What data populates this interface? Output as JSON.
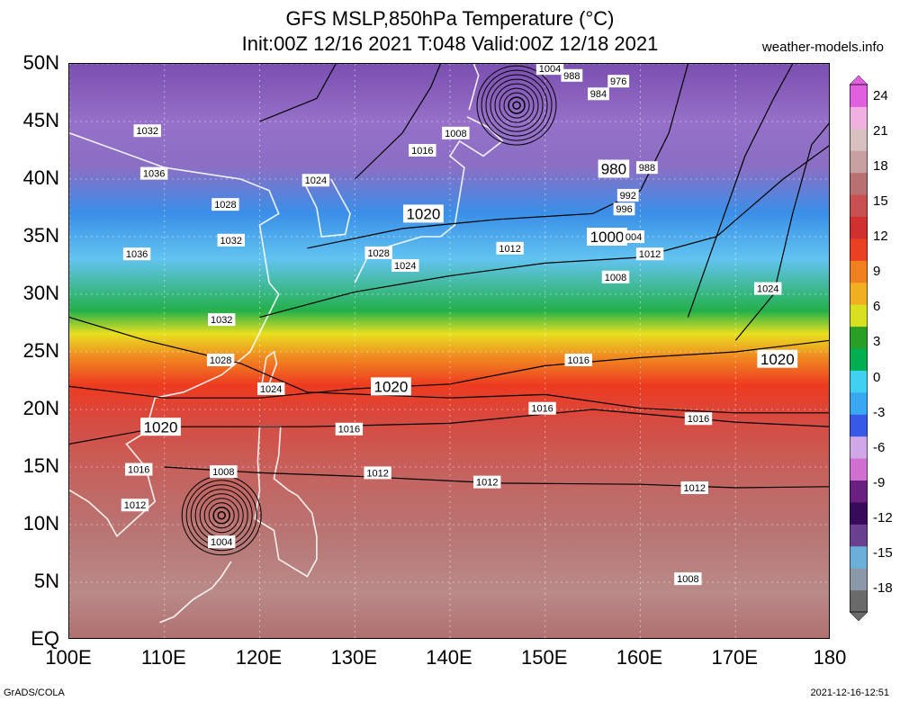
{
  "header": {
    "title_line1": "GFS MSLP,850hPa Temperature (°C)",
    "title_line2": "Init:00Z 12/16 2021 T:048 Valid:00Z 12/18 2021",
    "credit": "weather-models.info"
  },
  "map": {
    "lat_labels": [
      "50N",
      "45N",
      "40N",
      "35N",
      "30N",
      "25N",
      "20N",
      "15N",
      "10N",
      "5N",
      "EQ"
    ],
    "lat_values": [
      50,
      45,
      40,
      35,
      30,
      25,
      20,
      15,
      10,
      5,
      0
    ],
    "lon_labels": [
      "100E",
      "110E",
      "120E",
      "130E",
      "140E",
      "150E",
      "160E",
      "170E",
      "180"
    ],
    "lon_values": [
      100,
      110,
      120,
      130,
      140,
      150,
      160,
      170,
      180
    ],
    "lon_range": [
      100,
      180
    ],
    "lat_range": [
      0,
      50
    ],
    "isobar_labels": [
      {
        "text": "1004",
        "lon": 150.5,
        "lat": 49.6,
        "big": false
      },
      {
        "text": "988",
        "lon": 152.8,
        "lat": 49.0,
        "big": false
      },
      {
        "text": "984",
        "lon": 155.6,
        "lat": 47.4,
        "big": false
      },
      {
        "text": "976",
        "lon": 157.7,
        "lat": 48.5,
        "big": false
      },
      {
        "text": "1032",
        "lon": 108.2,
        "lat": 44.2,
        "big": false
      },
      {
        "text": "1008",
        "lon": 140.6,
        "lat": 44.0,
        "big": false
      },
      {
        "text": "1016",
        "lon": 137.1,
        "lat": 42.5,
        "big": false
      },
      {
        "text": "1036",
        "lon": 108.9,
        "lat": 40.5,
        "big": false
      },
      {
        "text": "980",
        "lon": 157.2,
        "lat": 40.9,
        "big": true
      },
      {
        "text": "988",
        "lon": 160.7,
        "lat": 41.0,
        "big": false
      },
      {
        "text": "1024",
        "lon": 125.9,
        "lat": 39.9,
        "big": false
      },
      {
        "text": "992",
        "lon": 158.7,
        "lat": 38.6,
        "big": false
      },
      {
        "text": "1028",
        "lon": 116.4,
        "lat": 37.8,
        "big": false
      },
      {
        "text": "996",
        "lon": 158.3,
        "lat": 37.4,
        "big": false
      },
      {
        "text": "1020",
        "lon": 137.2,
        "lat": 37.0,
        "big": true
      },
      {
        "text": "1000",
        "lon": 156.5,
        "lat": 35.0,
        "big": true
      },
      {
        "text": "004",
        "lon": 159.3,
        "lat": 35.0,
        "big": false
      },
      {
        "text": "1032",
        "lon": 117.0,
        "lat": 34.7,
        "big": false
      },
      {
        "text": "1012",
        "lon": 146.3,
        "lat": 34.0,
        "big": false
      },
      {
        "text": "1012",
        "lon": 161.0,
        "lat": 33.5,
        "big": false
      },
      {
        "text": "1036",
        "lon": 107.1,
        "lat": 33.5,
        "big": false
      },
      {
        "text": "1028",
        "lon": 132.5,
        "lat": 33.6,
        "big": false
      },
      {
        "text": "1024",
        "lon": 135.3,
        "lat": 32.5,
        "big": false
      },
      {
        "text": "1008",
        "lon": 157.4,
        "lat": 31.5,
        "big": false
      },
      {
        "text": "1024",
        "lon": 173.4,
        "lat": 30.5,
        "big": false
      },
      {
        "text": "1032",
        "lon": 116.0,
        "lat": 27.8,
        "big": false
      },
      {
        "text": "1020",
        "lon": 174.4,
        "lat": 24.4,
        "big": true
      },
      {
        "text": "1028",
        "lon": 115.9,
        "lat": 24.3,
        "big": false
      },
      {
        "text": "1016",
        "lon": 153.5,
        "lat": 24.3,
        "big": false
      },
      {
        "text": "1020",
        "lon": 133.8,
        "lat": 22.0,
        "big": true
      },
      {
        "text": "1024",
        "lon": 121.2,
        "lat": 21.8,
        "big": false
      },
      {
        "text": "1016",
        "lon": 149.7,
        "lat": 20.1,
        "big": false
      },
      {
        "text": "1016",
        "lon": 166.1,
        "lat": 19.2,
        "big": false
      },
      {
        "text": "1020",
        "lon": 109.6,
        "lat": 18.5,
        "big": true
      },
      {
        "text": "1016",
        "lon": 129.4,
        "lat": 18.3,
        "big": false
      },
      {
        "text": "1016",
        "lon": 107.3,
        "lat": 14.8,
        "big": false
      },
      {
        "text": "1008",
        "lon": 116.2,
        "lat": 14.6,
        "big": false
      },
      {
        "text": "1012",
        "lon": 132.4,
        "lat": 14.5,
        "big": false
      },
      {
        "text": "1012",
        "lon": 143.9,
        "lat": 13.7,
        "big": false
      },
      {
        "text": "1012",
        "lon": 165.7,
        "lat": 13.2,
        "big": false
      },
      {
        "text": "1012",
        "lon": 106.9,
        "lat": 11.7,
        "big": false
      },
      {
        "text": "1004",
        "lon": 116.0,
        "lat": 8.5,
        "big": false
      },
      {
        "text": "1008",
        "lon": 165.0,
        "lat": 5.3,
        "big": false
      }
    ],
    "lows": [
      {
        "lon": 147.0,
        "lat": 46.4
      },
      {
        "lon": 116.0,
        "lat": 10.8
      }
    ]
  },
  "colorbar": {
    "ticks": [
      "24",
      "21",
      "18",
      "15",
      "12",
      "9",
      "6",
      "3",
      "0",
      "-3",
      "-6",
      "-9",
      "-12",
      "-15",
      "-18"
    ],
    "values": [
      24,
      21,
      18,
      15,
      12,
      9,
      6,
      3,
      0,
      -3,
      -6,
      -9,
      -12,
      -15,
      -18
    ],
    "range": [
      -20,
      25
    ],
    "colors": [
      "#6a6a6a",
      "#8a98a8",
      "#6ab0d8",
      "#6a4090",
      "#3a0a5a",
      "#6a2080",
      "#d070d0",
      "#d0a8e8",
      "#3858e8",
      "#38a8f0",
      "#40d0f0",
      "#00b050",
      "#28a028",
      "#d8e020",
      "#f0b020",
      "#f08020",
      "#e84020",
      "#d03030",
      "#c85050",
      "#b87070",
      "#c8a0a0",
      "#d8c0c0",
      "#f0b0e0",
      "#e060e0"
    ]
  },
  "footer": {
    "left": "GrADS/COLA",
    "right": "2021-12-16-12:51"
  }
}
